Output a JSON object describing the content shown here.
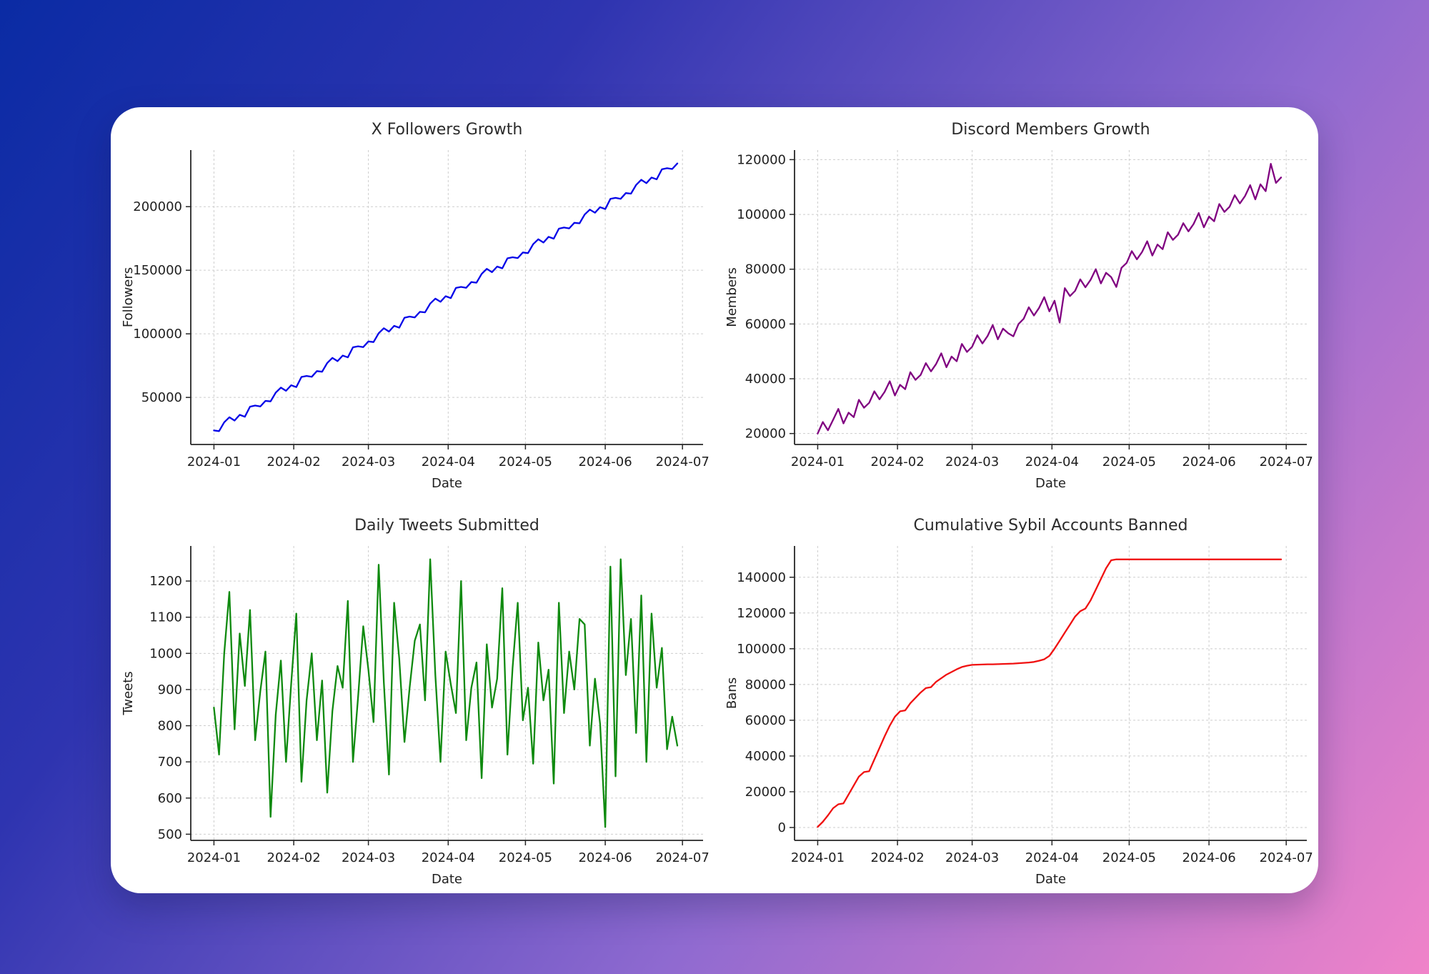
{
  "background": {
    "angle_deg": 126,
    "stops": [
      "#0a2ba4 0%",
      "#2e34b0 28%",
      "#8f6ad0 64%",
      "#f083c9 100%"
    ]
  },
  "theme": {
    "card_bg": "#ffffff",
    "grid_color": "#cdcdcd",
    "spine_color": "#262626",
    "text_color": "#1f1f1f",
    "title_color": "#2b2b2b"
  },
  "chart_data": [
    {
      "type": "line",
      "title": "X Followers Growth",
      "xlabel": "Date",
      "ylabel": "Followers",
      "line_color": "#0404e8",
      "legend": "none",
      "grid": "dashed",
      "x_tick_labels": [
        "2024-01",
        "2024-02",
        "2024-03",
        "2024-04",
        "2024-05",
        "2024-06",
        "2024-07"
      ],
      "x_tick_days": [
        0,
        31,
        60,
        91,
        121,
        152,
        182
      ],
      "x_start_day": 0,
      "x_step_days": 2,
      "xlim": [
        -9,
        190
      ],
      "ylim": [
        13000,
        244500
      ],
      "y_ticks": [
        50000,
        100000,
        150000,
        200000
      ],
      "values": [
        24000,
        23500,
        30500,
        34400,
        31800,
        36300,
        34800,
        42700,
        43600,
        42900,
        47300,
        46900,
        53800,
        57700,
        55200,
        59600,
        58100,
        66100,
        66900,
        66200,
        70700,
        70200,
        77100,
        81100,
        78500,
        82900,
        81500,
        89400,
        90200,
        89600,
        94000,
        93500,
        100500,
        104400,
        101800,
        106300,
        104800,
        112700,
        113600,
        112900,
        117300,
        116900,
        123800,
        127700,
        125200,
        129600,
        128100,
        136100,
        136900,
        136200,
        140700,
        140200,
        147100,
        151100,
        148500,
        152900,
        151500,
        159400,
        160200,
        159600,
        164000,
        163500,
        170500,
        174400,
        171800,
        176300,
        174800,
        182700,
        183600,
        182900,
        187300,
        186900,
        193800,
        197700,
        195200,
        199600,
        198100,
        206100,
        206900,
        206200,
        210700,
        210200,
        217100,
        221100,
        218500,
        222900,
        221500,
        229400,
        230200,
        229600,
        234000
      ]
    },
    {
      "type": "line",
      "title": "Discord Members Growth",
      "xlabel": "Date",
      "ylabel": "Members",
      "line_color": "#800080",
      "legend": "none",
      "grid": "dashed",
      "x_tick_labels": [
        "2024-01",
        "2024-02",
        "2024-03",
        "2024-04",
        "2024-05",
        "2024-06",
        "2024-07"
      ],
      "x_tick_days": [
        0,
        31,
        60,
        91,
        121,
        152,
        182
      ],
      "x_start_day": 0,
      "x_step_days": 2,
      "xlim": [
        -9,
        190
      ],
      "ylim": [
        16000,
        123500
      ],
      "y_ticks": [
        20000,
        40000,
        60000,
        80000,
        100000,
        120000
      ],
      "values": [
        20000,
        24200,
        21200,
        25000,
        29000,
        23700,
        27600,
        26000,
        32300,
        29400,
        31200,
        35400,
        32500,
        35200,
        39100,
        33900,
        37800,
        36200,
        42400,
        39600,
        41400,
        45700,
        42700,
        45400,
        49300,
        44200,
        48100,
        46400,
        52700,
        49800,
        51700,
        55900,
        52900,
        55600,
        59600,
        54400,
        58300,
        56600,
        55500,
        60000,
        61900,
        66100,
        63100,
        65900,
        69800,
        64600,
        68500,
        60500,
        73100,
        70200,
        72100,
        76300,
        73400,
        76100,
        80000,
        74800,
        78700,
        77100,
        73500,
        80500,
        82300,
        86600,
        83600,
        86300,
        90200,
        85000,
        89000,
        87300,
        93500,
        90700,
        92600,
        96800,
        93800,
        96500,
        100500,
        95300,
        99200,
        97500,
        103800,
        100900,
        102800,
        107000,
        104000,
        106700,
        110700,
        105500,
        111000,
        108500,
        118500,
        111500,
        113500
      ]
    },
    {
      "type": "line",
      "title": "Daily Tweets Submitted",
      "xlabel": "Date",
      "ylabel": "Tweets",
      "line_color": "#0f8a0f",
      "legend": "none",
      "grid": "dashed",
      "x_tick_labels": [
        "2024-01",
        "2024-02",
        "2024-03",
        "2024-04",
        "2024-05",
        "2024-06",
        "2024-07"
      ],
      "x_tick_days": [
        0,
        31,
        60,
        91,
        121,
        152,
        182
      ],
      "x_start_day": 0,
      "x_step_days": 2,
      "xlim": [
        -9,
        190
      ],
      "ylim": [
        483,
        1297
      ],
      "y_ticks": [
        500,
        600,
        700,
        800,
        900,
        1000,
        1100,
        1200
      ],
      "values": [
        850,
        720,
        1000,
        1170,
        790,
        1055,
        910,
        1120,
        760,
        895,
        1005,
        548,
        830,
        980,
        700,
        915,
        1110,
        645,
        870,
        1000,
        760,
        925,
        615,
        840,
        965,
        905,
        1145,
        700,
        880,
        1075,
        955,
        810,
        1245,
        920,
        665,
        1140,
        985,
        755,
        905,
        1035,
        1080,
        870,
        1260,
        940,
        700,
        1005,
        915,
        835,
        1200,
        760,
        905,
        975,
        655,
        1025,
        850,
        930,
        1180,
        720,
        960,
        1140,
        815,
        905,
        695,
        1030,
        870,
        955,
        640,
        1140,
        835,
        1005,
        900,
        1095,
        1080,
        745,
        930,
        805,
        520,
        1240,
        660,
        1260,
        940,
        1095,
        780,
        1160,
        700,
        1110,
        905,
        1015,
        735,
        825,
        745
      ]
    },
    {
      "type": "line",
      "title": "Cumulative Sybil Accounts Banned",
      "xlabel": "Date",
      "ylabel": "Bans",
      "line_color": "#f01010",
      "legend": "none",
      "grid": "dashed",
      "x_tick_labels": [
        "2024-01",
        "2024-02",
        "2024-03",
        "2024-04",
        "2024-05",
        "2024-06",
        "2024-07"
      ],
      "x_tick_days": [
        0,
        31,
        60,
        91,
        121,
        152,
        182
      ],
      "x_start_day": 0,
      "x_step_days": 2,
      "xlim": [
        -9,
        190
      ],
      "ylim": [
        -7200,
        157500
      ],
      "y_ticks": [
        0,
        20000,
        40000,
        60000,
        80000,
        100000,
        120000,
        140000
      ],
      "values": [
        300,
        3200,
        6800,
        10800,
        13000,
        13500,
        18500,
        23500,
        28500,
        31000,
        31500,
        38000,
        44500,
        51000,
        57000,
        62000,
        65000,
        65500,
        69500,
        72500,
        75500,
        78000,
        78500,
        81500,
        83500,
        85500,
        87000,
        88500,
        89800,
        90500,
        91000,
        91100,
        91200,
        91300,
        91300,
        91400,
        91500,
        91600,
        91700,
        91900,
        92100,
        92300,
        92600,
        93300,
        94100,
        96000,
        100000,
        104500,
        109000,
        113500,
        118000,
        121000,
        122500,
        127000,
        133000,
        139000,
        145000,
        149500,
        150000,
        150000,
        150000,
        150000,
        150000,
        150000,
        150000,
        150000,
        150000,
        150000,
        150000,
        150000,
        150000,
        150000,
        150000,
        150000,
        150000,
        150000,
        150000,
        150000,
        150000,
        150000,
        150000,
        150000,
        150000,
        150000,
        150000,
        150000,
        150000,
        150000,
        150000,
        150000,
        150000
      ]
    }
  ]
}
